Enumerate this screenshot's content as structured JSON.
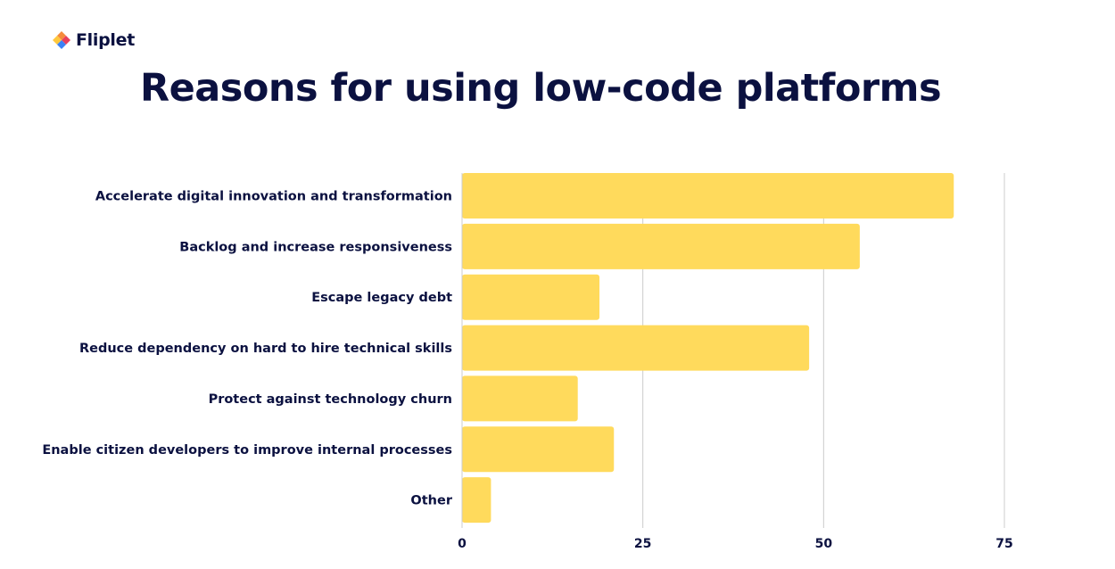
{
  "brand": {
    "name": "Fliplet"
  },
  "colors": {
    "bar": "#ffda5c",
    "text": "#0b1140",
    "grid": "#cccccc",
    "logo_orange": "#f58b3c",
    "logo_red": "#e8405c",
    "logo_yellow": "#ffc83d",
    "logo_blue": "#3b82f6"
  },
  "chart_data": {
    "type": "bar",
    "orientation": "horizontal",
    "title": "Reasons for using low-code platforms",
    "categories": [
      "Accelerate digital innovation and transformation",
      "Backlog and increase responsiveness",
      "Escape legacy debt",
      "Reduce dependency on hard to hire technical skills",
      "Protect against technology churn",
      "Enable citizen developers to improve internal processes",
      "Other"
    ],
    "values": [
      68,
      55,
      19,
      48,
      16,
      21,
      4
    ],
    "xlim": [
      0,
      75
    ],
    "xticks": [
      "0",
      "25",
      "50",
      "75"
    ],
    "grid": true,
    "legend": "none",
    "xlabel": "",
    "ylabel": ""
  }
}
